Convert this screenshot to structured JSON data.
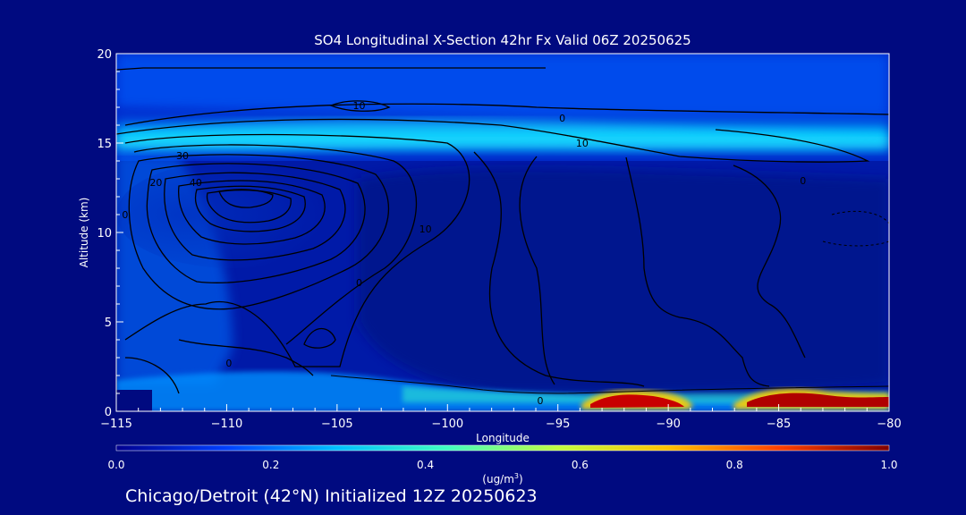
{
  "chart_data": {
    "type": "heatmap",
    "title": "SO4 Longitudinal X-Section 42hr  Fx Valid 06Z 20250625",
    "xlabel": "Longitude",
    "ylabel": "Altitude (km)",
    "xlim": [
      -115,
      -80
    ],
    "ylim": [
      0,
      20
    ],
    "x_ticks": [
      -115,
      -110,
      -105,
      -100,
      -95,
      -90,
      -85,
      -80
    ],
    "y_ticks": [
      0,
      5,
      10,
      15,
      20
    ],
    "colorbar": {
      "min": 0.0,
      "max": 1.0,
      "ticks": [
        0.0,
        0.2,
        0.4,
        0.6,
        0.8,
        1.0
      ],
      "tick_labels": [
        "0.0",
        "0.2",
        "0.4",
        "0.6",
        "0.8",
        "1.0"
      ],
      "unit_label": "(ug/m",
      "unit_superscript": "3",
      "unit_close": ")",
      "colors": [
        "#00008f",
        "#0040ff",
        "#00c0ff",
        "#40ffc0",
        "#c0ff40",
        "#ffc000",
        "#ff4000",
        "#800000"
      ]
    },
    "contour_labels": [
      {
        "text": "10",
        "x": -104.0,
        "y": 16.9
      },
      {
        "text": "0",
        "x": -94.8,
        "y": 16.2
      },
      {
        "text": "10",
        "x": -93.9,
        "y": 14.8
      },
      {
        "text": "30",
        "x": -112.0,
        "y": 14.1
      },
      {
        "text": "20",
        "x": -113.2,
        "y": 12.6
      },
      {
        "text": "40",
        "x": -111.4,
        "y": 12.6
      },
      {
        "text": "0",
        "x": -114.6,
        "y": 10.8
      },
      {
        "text": "10",
        "x": -101.0,
        "y": 10.0
      },
      {
        "text": "0",
        "x": -83.9,
        "y": 12.7
      },
      {
        "text": "0",
        "x": -109.9,
        "y": 2.5
      },
      {
        "text": "0",
        "x": -104.0,
        "y": 7.0
      },
      {
        "text": "0",
        "x": -95.8,
        "y": 0.4
      }
    ],
    "annotation": "Chicago/Detroit (42°N) Initialized 12Z 20250623"
  }
}
